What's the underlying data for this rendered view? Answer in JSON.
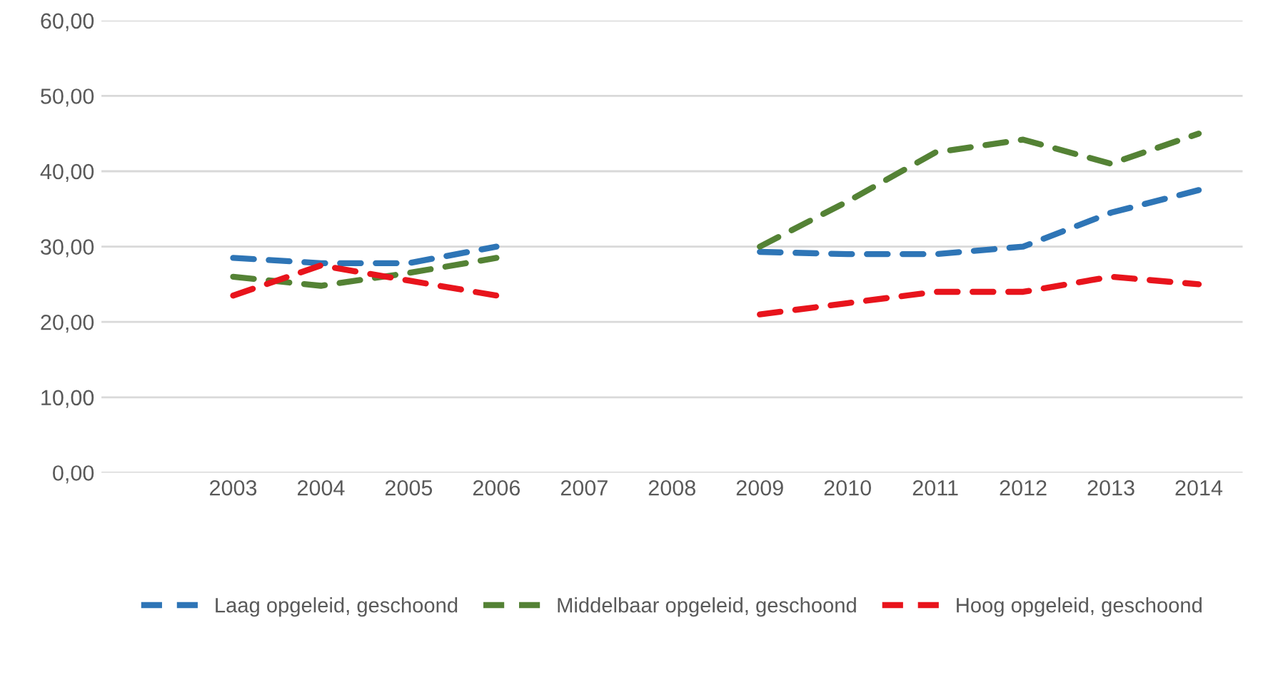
{
  "chart_data": {
    "type": "line",
    "categories": [
      null,
      "2003",
      "2004",
      "2005",
      "2006",
      "2007",
      "2008",
      "2009",
      "2010",
      "2011",
      "2012",
      "2013",
      "2014"
    ],
    "series": [
      {
        "name": "Laag opgeleid, geschoond",
        "color": "#2e75b6",
        "values": [
          null,
          28.5,
          27.8,
          27.8,
          30.0,
          null,
          null,
          29.3,
          29.0,
          29.0,
          30.0,
          34.5,
          37.5
        ]
      },
      {
        "name": "Middelbaar opgeleid, geschoond",
        "color": "#548235",
        "values": [
          null,
          26.0,
          24.8,
          26.5,
          28.5,
          null,
          null,
          30.0,
          36.0,
          42.5,
          44.2,
          41.0,
          45.0
        ]
      },
      {
        "name": "Hoog opgeleid, geschoond",
        "color": "#e8141c",
        "values": [
          null,
          23.5,
          27.5,
          25.5,
          23.5,
          null,
          null,
          21.0,
          22.5,
          24.0,
          24.0,
          26.0,
          25.0
        ]
      }
    ],
    "ylim": [
      0,
      60
    ],
    "yticks": [
      {
        "value": 0,
        "label": "0,00"
      },
      {
        "value": 10,
        "label": "10,00"
      },
      {
        "value": 20,
        "label": "20,00"
      },
      {
        "value": 30,
        "label": "30,00"
      },
      {
        "value": 40,
        "label": "40,00"
      },
      {
        "value": 50,
        "label": "50,00"
      },
      {
        "value": 60,
        "label": "60,00"
      }
    ],
    "grid": "y",
    "legend": "bottom",
    "line_style": "dashed",
    "marker": "none"
  }
}
